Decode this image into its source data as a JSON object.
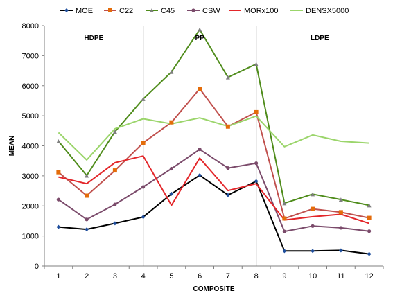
{
  "chart_data": {
    "type": "line",
    "title": "",
    "xlabel": "COMPOSITE",
    "ylabel": "MEAN",
    "categories": [
      "1",
      "2",
      "3",
      "4",
      "5",
      "6",
      "7",
      "8",
      "9",
      "10",
      "11",
      "12"
    ],
    "ylim": [
      0,
      8000
    ],
    "yticks": [
      0,
      1000,
      2000,
      3000,
      4000,
      5000,
      6000,
      7000,
      8000
    ],
    "grid": false,
    "legend_position": "top",
    "region_labels": [
      "HDPE",
      "PP",
      "LDPE"
    ],
    "region_dividers_after_category": [
      "4",
      "8"
    ],
    "series": [
      {
        "name": "MOE",
        "color": "#000000",
        "marker": "diamond",
        "marker_color": "#1f4e9c",
        "values": [
          1300,
          1220,
          1420,
          1630,
          2400,
          3020,
          2360,
          2820,
          500,
          500,
          520,
          400
        ]
      },
      {
        "name": "C22",
        "color": "#c0504d",
        "marker": "square",
        "marker_color": "#e46c0a",
        "values": [
          3120,
          2340,
          3180,
          4100,
          4780,
          5900,
          4640,
          5120,
          1580,
          1900,
          1790,
          1600
        ]
      },
      {
        "name": "C45",
        "color": "#4f8c1b",
        "marker": "triangle",
        "marker_color": "#7f7f7f",
        "values": [
          4150,
          3010,
          4470,
          5560,
          6460,
          7870,
          6280,
          6720,
          2090,
          2390,
          2210,
          2020
        ]
      },
      {
        "name": "CSW",
        "color": "#7b4b6b",
        "marker": "circle",
        "marker_color": "#7b4b6b",
        "values": [
          2210,
          1550,
          2050,
          2630,
          3240,
          3880,
          3260,
          3420,
          1150,
          1330,
          1270,
          1160
        ]
      },
      {
        "name": "MORx100",
        "color": "#e3262a",
        "marker": "none",
        "marker_color": "#e3262a",
        "values": [
          2960,
          2740,
          3440,
          3660,
          2020,
          3590,
          2510,
          2740,
          1530,
          1640,
          1720,
          1420
        ]
      },
      {
        "name": "DENSX5000",
        "color": "#9bd56b",
        "marker": "none",
        "marker_color": "#9bd56b",
        "values": [
          4440,
          3530,
          4570,
          4900,
          4730,
          4930,
          4650,
          4990,
          3970,
          4360,
          4150,
          4090
        ]
      }
    ]
  }
}
